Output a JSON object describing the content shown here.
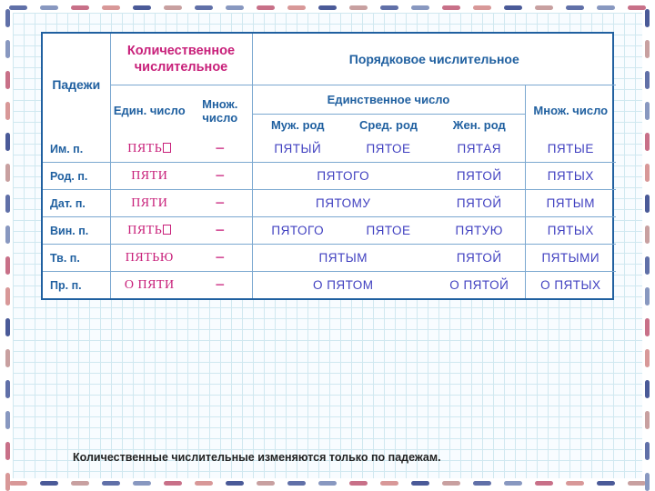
{
  "stitch_colors": [
    "#6070a8",
    "#8898c0",
    "#c87088",
    "#d89898",
    "#4a5a98",
    "#c8a0a0"
  ],
  "headers": {
    "cases": "Падежи",
    "cardinal": "Количественное числительное",
    "ordinal": "Порядковое числительное",
    "sg": "Един. число",
    "pl": "Множ. число",
    "sg_full": "Единственное число",
    "pl2": "Множ. число",
    "m": "Муж. род",
    "n": "Сред. род",
    "f": "Жен. род"
  },
  "rows": [
    {
      "case": "Им. п.",
      "card": "ПЯТЬ",
      "box": true,
      "pl": "−",
      "m": "ПЯТЫЙ",
      "n": "ПЯТОЕ",
      "f": "ПЯТАЯ",
      "opl": "ПЯТЫЕ"
    },
    {
      "case": "Род. п.",
      "card": "ПЯТИ",
      "box": false,
      "pl": "−",
      "m": "ПЯТОГО",
      "n": "",
      "f": "ПЯТОЙ",
      "opl": "ПЯТЫХ",
      "mspan": 2
    },
    {
      "case": "Дат. п.",
      "card": "ПЯТИ",
      "box": false,
      "pl": "−",
      "m": "ПЯТОМУ",
      "n": "",
      "f": "ПЯТОЙ",
      "opl": "ПЯТЫМ",
      "mspan": 2
    },
    {
      "case": "Вин. п.",
      "card": "ПЯТЬ",
      "box": true,
      "pl": "−",
      "m": "ПЯТОГО",
      "n": "ПЯТОЕ",
      "f": "ПЯТУЮ",
      "opl": "ПЯТЫХ"
    },
    {
      "case": "Тв. п.",
      "card": "ПЯТЬЮ",
      "box": false,
      "pl": "−",
      "m": "ПЯТЫМ",
      "n": "",
      "f": "ПЯТОЙ",
      "opl": "ПЯТЫМИ",
      "mspan": 2
    },
    {
      "case": "Пр. п.",
      "card": "О ПЯТИ",
      "box": false,
      "pl": "−",
      "m": "О ПЯТОМ",
      "n": "",
      "f": "О ПЯТОЙ",
      "opl": "О ПЯТЫХ",
      "mspan": 2
    }
  ],
  "footnote": "Количественные числительные изменяются только по падежам."
}
